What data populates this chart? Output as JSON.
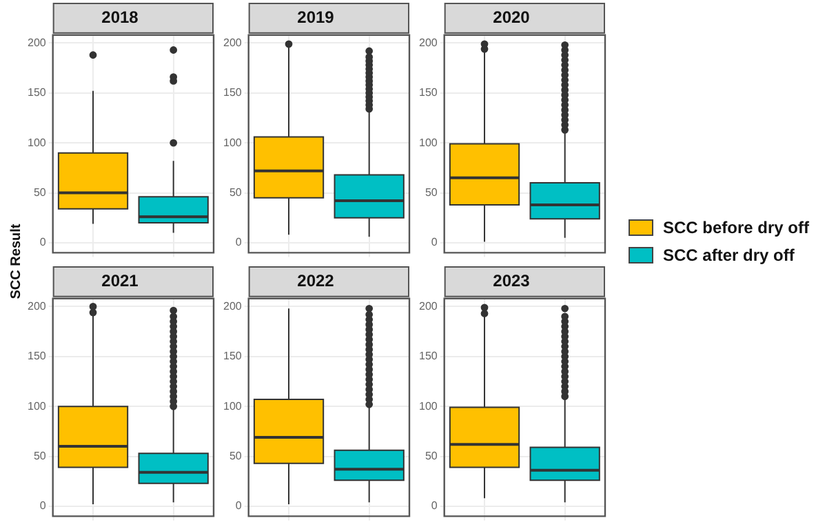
{
  "chart_data": [
    {
      "type": "box",
      "title": "2018",
      "ylabel": "SCC Result",
      "legend": "right",
      "grid": true,
      "tick_labels": "y",
      "categories": [
        null,
        null
      ],
      "ylim": [
        -10,
        208
      ],
      "yticks": [
        0,
        50,
        100,
        150,
        200
      ],
      "series": [
        {
          "name": "SCC before dry off",
          "color": "#ffc000",
          "boxes": [
            {
              "low": 19,
              "q1": 34,
              "median": 50,
              "q3": 90,
              "high": 152,
              "outliers": [
                188
              ]
            },
            null
          ]
        },
        {
          "name": "SCC after dry off",
          "color": "#00bfc4",
          "boxes": [
            null,
            {
              "low": 10,
              "q1": 20,
              "median": 26,
              "q3": 46,
              "high": 82,
              "outliers": [
                100,
                162,
                166,
                193
              ]
            }
          ]
        }
      ]
    },
    {
      "type": "box",
      "title": "2019",
      "grid": true,
      "tick_labels": "y",
      "categories": [
        null,
        null
      ],
      "ylim": [
        -10,
        208
      ],
      "yticks": [
        0,
        50,
        100,
        150,
        200
      ],
      "series": [
        {
          "color": "#ffc000",
          "boxes": [
            {
              "low": 8,
              "q1": 45,
              "median": 72,
              "q3": 106,
              "high": 196,
              "outliers": [
                199
              ]
            },
            null
          ]
        },
        {
          "color": "#00bfc4",
          "boxes": [
            null,
            {
              "low": 6,
              "q1": 25,
              "median": 42,
              "q3": 68,
              "high": 131,
              "outliers": [
                134,
                138,
                142,
                146,
                150,
                154,
                158,
                162,
                166,
                170,
                174,
                178,
                182,
                186,
                192
              ]
            }
          ]
        }
      ]
    },
    {
      "type": "box",
      "title": "2020",
      "grid": true,
      "tick_labels": "y",
      "categories": [
        null,
        null
      ],
      "ylim": [
        -10,
        208
      ],
      "yticks": [
        0,
        50,
        100,
        150,
        200
      ],
      "series": [
        {
          "color": "#ffc000",
          "boxes": [
            {
              "low": 1,
              "q1": 38,
              "median": 65,
              "q3": 99,
              "high": 193,
              "outliers": [
                194,
                199
              ]
            },
            null
          ]
        },
        {
          "color": "#00bfc4",
          "boxes": [
            null,
            {
              "low": 5,
              "q1": 24,
              "median": 38,
              "q3": 60,
              "high": 110,
              "outliers": [
                113,
                118,
                123,
                128,
                133,
                138,
                143,
                148,
                153,
                158,
                163,
                168,
                173,
                178,
                183,
                188,
                193,
                198
              ]
            }
          ]
        }
      ]
    },
    {
      "type": "box",
      "title": "2021",
      "grid": true,
      "tick_labels": "y",
      "categories": [
        null,
        null
      ],
      "ylim": [
        -10,
        208
      ],
      "yticks": [
        0,
        50,
        100,
        150,
        200
      ],
      "series": [
        {
          "color": "#ffc000",
          "boxes": [
            {
              "low": 2,
              "q1": 39,
              "median": 60,
              "q3": 100,
              "high": 191,
              "outliers": [
                194,
                200
              ]
            },
            null
          ]
        },
        {
          "color": "#00bfc4",
          "boxes": [
            null,
            {
              "low": 4,
              "q1": 23,
              "median": 34,
              "q3": 53,
              "high": 97,
              "outliers": [
                100,
                105,
                110,
                115,
                120,
                125,
                130,
                135,
                140,
                145,
                150,
                155,
                160,
                165,
                170,
                175,
                180,
                185,
                190,
                196
              ]
            }
          ]
        }
      ]
    },
    {
      "type": "box",
      "title": "2022",
      "grid": true,
      "tick_labels": "y",
      "categories": [
        null,
        null
      ],
      "ylim": [
        -10,
        208
      ],
      "yticks": [
        0,
        50,
        100,
        150,
        200
      ],
      "series": [
        {
          "color": "#ffc000",
          "boxes": [
            {
              "low": 2,
              "q1": 43,
              "median": 69,
              "q3": 107,
              "high": 198
            },
            null
          ]
        },
        {
          "color": "#00bfc4",
          "boxes": [
            null,
            {
              "low": 4,
              "q1": 26,
              "median": 37,
              "q3": 56,
              "high": 99,
              "outliers": [
                102,
                107,
                112,
                117,
                122,
                127,
                132,
                137,
                142,
                147,
                152,
                157,
                162,
                167,
                172,
                177,
                182,
                187,
                192,
                198
              ]
            }
          ]
        }
      ]
    },
    {
      "type": "box",
      "title": "2023",
      "grid": true,
      "tick_labels": "y",
      "categories": [
        null,
        null
      ],
      "ylim": [
        -10,
        208
      ],
      "yticks": [
        0,
        50,
        100,
        150,
        200
      ],
      "series": [
        {
          "color": "#ffc000",
          "boxes": [
            {
              "low": 8,
              "q1": 39,
              "median": 62,
              "q3": 99,
              "high": 190,
              "outliers": [
                193,
                199
              ]
            },
            null
          ]
        },
        {
          "color": "#00bfc4",
          "boxes": [
            null,
            {
              "low": 4,
              "q1": 26,
              "median": 36,
              "q3": 59,
              "high": 107,
              "outliers": [
                110,
                115,
                120,
                125,
                130,
                135,
                140,
                145,
                150,
                155,
                160,
                165,
                170,
                175,
                180,
                185,
                190,
                198
              ]
            }
          ]
        }
      ]
    }
  ]
}
